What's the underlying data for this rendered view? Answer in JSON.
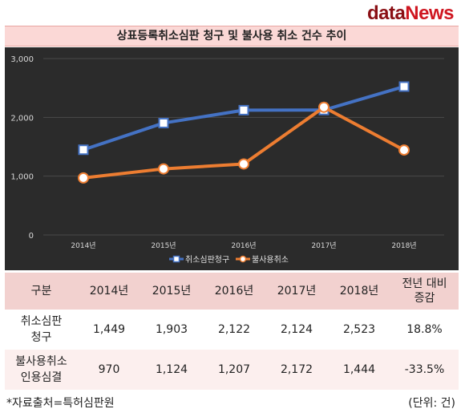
{
  "brand": {
    "part1": "data",
    "part2": "News"
  },
  "title": "상표등록취소심판 청구 및 불사용 취소 건수 추이",
  "chart_data": {
    "type": "line",
    "categories": [
      "2014년",
      "2015년",
      "2016년",
      "2017년",
      "2018년"
    ],
    "series": [
      {
        "name": "취소심판청구",
        "values": [
          1449,
          1903,
          2122,
          2124,
          2523
        ],
        "color": "#4472c4",
        "marker": "square"
      },
      {
        "name": "불사용취소",
        "values": [
          970,
          1124,
          1207,
          2172,
          1444
        ],
        "color": "#ed7d31",
        "marker": "circle"
      }
    ],
    "ylim": [
      0,
      3000
    ],
    "yticks": [
      0,
      1000,
      2000,
      3000
    ],
    "ytick_labels": [
      "0",
      "1,000",
      "2,000",
      "3,000"
    ],
    "grid": true,
    "legend_position": "bottom",
    "background": "#2b2b2b"
  },
  "table": {
    "header": [
      "구분",
      "2014년",
      "2015년",
      "2016년",
      "2017년",
      "2018년",
      "전년 대비\n증감"
    ],
    "rows": [
      {
        "label": "취소심판\n청구",
        "values": [
          "1,449",
          "1,903",
          "2,122",
          "2,124",
          "2,523"
        ],
        "change": "18.8%"
      },
      {
        "label": "불사용취소\n인용심결",
        "values": [
          "970",
          "1,124",
          "1,207",
          "2,172",
          "1,444"
        ],
        "change": "-33.5%"
      }
    ]
  },
  "footer": {
    "source": "*자료출처=특허심판원",
    "unit": "(단위: 건)"
  }
}
